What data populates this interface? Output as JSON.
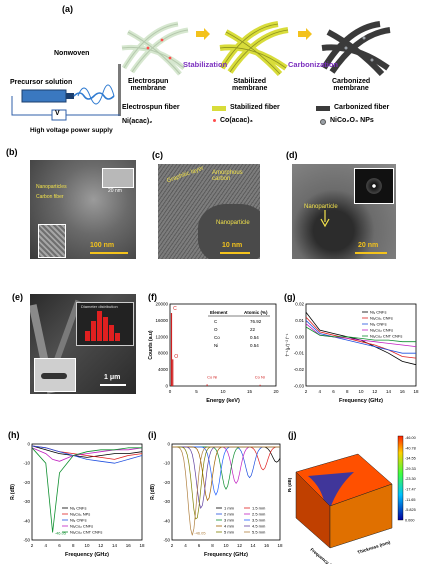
{
  "panel_a": {
    "label": "(a)",
    "precursor_solution": "Precursor solution",
    "nonwoven": "Nonwoven",
    "high_voltage": "High voltage power supply",
    "v_symbol": "V",
    "stage_electrospun": "Electrospun\nmembrane",
    "stage_stabilized": "Stabilized\nmembrane",
    "stage_carbonized": "Carbonized\nmembrane",
    "arrow1": "Stabilization",
    "arrow2": "Carbonization",
    "legend": {
      "electrospun_fiber": "Electrospun fiber",
      "stabilized_fiber": "Stabilized fiber",
      "carbonized_fiber": "Carbonized fiber",
      "ni_acac": "Ni(acac)₂",
      "co_acac": "Co(acac)₃",
      "nicoo_nps": "NiCo₂O₄ NPs"
    },
    "colors": {
      "electrospun": "#cfe0c8",
      "stabilized": "#d8dc3a",
      "carbonized": "#3a3a3a",
      "arrow": "#f3c21c",
      "stab_text": "#7b2fbf"
    }
  },
  "panel_b": {
    "label": "(b)",
    "scale": "100 nm",
    "note1": "Nanoparticles",
    "note2": "Carbon fiber",
    "inset_scale": "20 nm"
  },
  "panel_c": {
    "label": "(c)",
    "graphitic": "Graphitic layer",
    "amorphous": "Amorphous\ncarbon",
    "nanoparticle": "Nanoparticle",
    "scale": "10 nm"
  },
  "panel_d": {
    "label": "(d)",
    "nanoparticle": "Nanoparticle",
    "scale": "20 nm"
  },
  "panel_e": {
    "label": "(e)",
    "scale": "1 μm",
    "hist_title": "Diameter distribution"
  },
  "panel_f": {
    "label": "(f)",
    "ylabel": "Counts (a.u)",
    "xlabel": "Energy (keV)",
    "yticks": [
      "20000",
      "16000",
      "12000",
      "8000",
      "4000",
      "0"
    ],
    "xticks": [
      "0",
      "5",
      "10",
      "15",
      "20"
    ],
    "peaks": {
      "c": "C",
      "o": "O",
      "coni1": "Co Ni",
      "coni2": "Co Ni"
    },
    "table": {
      "h1": "Element",
      "h2": "Atomic (%)",
      "rows": [
        [
          "C",
          "76.92"
        ],
        [
          "O",
          "22"
        ],
        [
          "Co",
          "0.54"
        ],
        [
          "Ni",
          "0.54"
        ]
      ]
    }
  },
  "panel_g": {
    "label": "(g)",
    "ylabel": "f'⁻¹(μ')⁻² f⁻¹",
    "xlabel": "Frequency (GHz)",
    "yticks": [
      "0.02",
      "0.01",
      "0.00",
      "-0.01",
      "-0.02",
      "-0.03"
    ],
    "xticks": [
      "2",
      "4",
      "6",
      "8",
      "10",
      "12",
      "14",
      "16",
      "18"
    ],
    "legend": [
      "Ni₁ CNFs",
      "Ni₁Co₁ CNFs",
      "Ni₂ CNFs",
      "Ni₁Co₂ CNFs",
      "Ni₁Co₂ CNT CNFs"
    ]
  },
  "panel_h": {
    "label": "(h)",
    "ylabel": "Rₗ (dB)",
    "xlabel": "Frequency (GHz)",
    "yticks": [
      "0",
      "-10",
      "-20",
      "-30",
      "-40",
      "-50"
    ],
    "xticks": [
      "2",
      "4",
      "6",
      "8",
      "10",
      "12",
      "14",
      "16",
      "18"
    ],
    "min_label": "-46.05",
    "legend": [
      "Ni₁ CNFs",
      "Ni₁Co₁ NPs",
      "Ni₂ CNFs",
      "Ni₁Co₂ CNFs",
      "Ni₁Co₂ CNT CNFs"
    ]
  },
  "panel_i": {
    "label": "(i)",
    "ylabel": "Rₗ (dB)",
    "xlabel": "Frequency (GHz)",
    "yticks": [
      "0",
      "-10",
      "-20",
      "-30",
      "-40",
      "-50"
    ],
    "xticks": [
      "2",
      "4",
      "6",
      "8",
      "10",
      "12",
      "14",
      "16",
      "18"
    ],
    "min_label": "-46.05",
    "legend": [
      "1 mm",
      "1.5 mm",
      "2 mm",
      "2.5 mm",
      "3 mm",
      "3.5 mm",
      "4 mm",
      "4.5 mm",
      "5 mm",
      "5.5 mm"
    ]
  },
  "panel_j": {
    "label": "(j)",
    "zlabel": "Rₗ (dB)",
    "xlabel": "Frequency (GHz)",
    "ylabel": "Thickness (mm)",
    "colorbar": [
      "-46.00",
      "-40.78",
      "-34.55",
      "-29.33",
      "-23.30",
      "-17.47",
      "-11.65",
      "-5.825",
      "0.000"
    ]
  },
  "chart_data": [
    {
      "type": "bar",
      "panel": "f",
      "categories": [
        "C",
        "O",
        "Co",
        "Ni"
      ],
      "values": [
        76.92,
        22,
        0.54,
        0.54
      ],
      "title": "",
      "xlabel": "Element",
      "ylabel": "Atomic (%)"
    },
    {
      "type": "line",
      "panel": "g",
      "x": [
        2,
        4,
        6,
        8,
        10,
        12,
        14,
        16,
        18
      ],
      "xlabel": "Frequency (GHz)",
      "series": [
        {
          "name": "Ni₁ CNFs",
          "values": [
            0.015,
            0.004,
            0.002,
            0.0,
            -0.002,
            -0.006,
            -0.01,
            -0.015,
            -0.017
          ]
        },
        {
          "name": "Ni₁Co₁ CNFs",
          "values": [
            0.012,
            0.003,
            0.001,
            -0.001,
            -0.003,
            -0.005,
            -0.008,
            -0.012,
            -0.013
          ]
        },
        {
          "name": "Ni₂ CNFs",
          "values": [
            0.01,
            0.002,
            0.0,
            -0.002,
            -0.004,
            -0.006,
            -0.008,
            -0.01,
            -0.01
          ]
        },
        {
          "name": "Ni₁Co₂ CNFs",
          "values": [
            0.008,
            0.001,
            0.0,
            -0.001,
            -0.002,
            -0.003,
            -0.004,
            -0.005,
            -0.006
          ]
        },
        {
          "name": "Ni₁Co₂ CNT CNFs",
          "values": [
            0.006,
            0.001,
            0.0,
            0.0,
            -0.001,
            -0.002,
            -0.002,
            -0.003,
            -0.003
          ]
        }
      ],
      "ylim": [
        -0.03,
        0.025
      ]
    },
    {
      "type": "line",
      "panel": "h",
      "x": [
        2,
        4,
        5,
        6,
        8,
        10,
        12,
        14,
        16,
        18
      ],
      "xlabel": "Frequency (GHz)",
      "ylabel": "Rₗ (dB)",
      "series": [
        {
          "name": "Ni₁ CNFs",
          "values": [
            -1,
            -3,
            -4,
            -5,
            -6,
            -7,
            -6,
            -5,
            -5,
            -4
          ]
        },
        {
          "name": "Ni₁Co₁ NPs",
          "values": [
            -1,
            -2,
            -3,
            -4,
            -5,
            -6,
            -7,
            -8,
            -6,
            -5
          ]
        },
        {
          "name": "Ni₂ CNFs",
          "values": [
            -1,
            -2,
            -3,
            -4,
            -6,
            -8,
            -9,
            -10,
            -8,
            -6
          ]
        },
        {
          "name": "Ni₁Co₂ CNFs",
          "values": [
            -2,
            -5,
            -8,
            -9,
            -6,
            -5,
            -4,
            -3,
            -3,
            -2
          ]
        },
        {
          "name": "Ni₁Co₂ CNT CNFs",
          "values": [
            -2,
            -10,
            -46.05,
            -15,
            -6,
            -4,
            -3,
            -3,
            -2,
            -2
          ]
        }
      ],
      "ylim": [
        -50,
        0
      ]
    },
    {
      "type": "line",
      "panel": "i",
      "xlabel": "Frequency (GHz)",
      "ylabel": "Rₗ (dB)",
      "series": [
        {
          "name": "1 mm",
          "dip_x": 17.5,
          "dip_y": -8
        },
        {
          "name": "1.5 mm",
          "dip_x": 15.5,
          "dip_y": -12
        },
        {
          "name": "2 mm",
          "dip_x": 13.5,
          "dip_y": -16
        },
        {
          "name": "2.5 mm",
          "dip_x": 11.5,
          "dip_y": -19
        },
        {
          "name": "3 mm",
          "dip_x": 10,
          "dip_y": -22
        },
        {
          "name": "3.5 mm",
          "dip_x": 8.5,
          "dip_y": -25
        },
        {
          "name": "4 mm",
          "dip_x": 7.3,
          "dip_y": -28
        },
        {
          "name": "4.5 mm",
          "dip_x": 6.3,
          "dip_y": -32
        },
        {
          "name": "5 mm",
          "dip_x": 5.6,
          "dip_y": -38
        },
        {
          "name": "5.5 mm",
          "dip_x": 5,
          "dip_y": -46.05
        }
      ],
      "ylim": [
        -50,
        0
      ]
    }
  ]
}
